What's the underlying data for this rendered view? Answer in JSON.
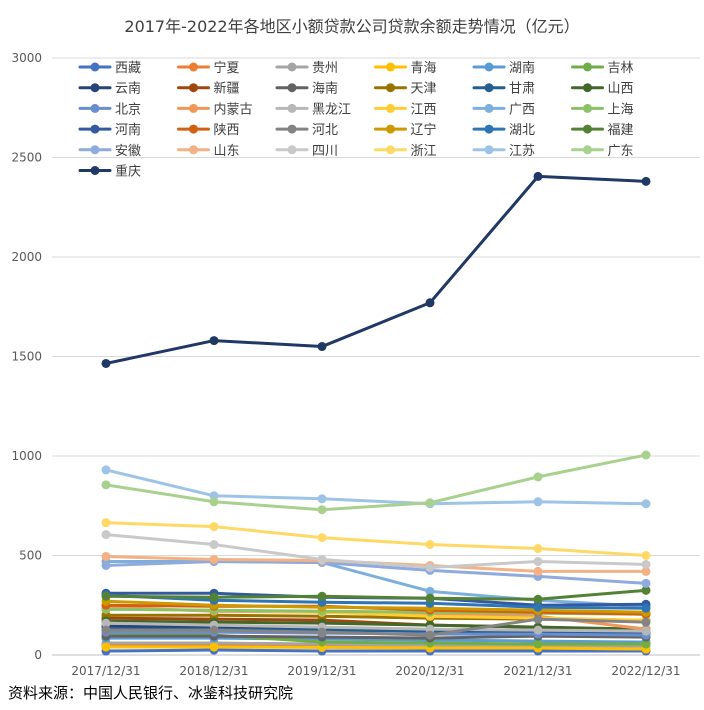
{
  "chart_data": {
    "type": "line",
    "title": "2017年-2022年各地区小额贷款公司贷款余额走势情况（亿元）",
    "xlabel": "",
    "ylabel": "",
    "categories": [
      "2017/12/31",
      "2018/12/31",
      "2019/12/31",
      "2020/12/31",
      "2021/12/31",
      "2022/12/31"
    ],
    "ylim": [
      0,
      3000
    ],
    "yticks": [
      0,
      500,
      1000,
      1500,
      2000,
      2500,
      3000
    ],
    "grid": "horizontal",
    "legend": "top-left, 6 columns",
    "series": [
      {
        "name": "西藏",
        "color": "#4472c4",
        "values": [
          20,
          25,
          20,
          20,
          20,
          20
        ]
      },
      {
        "name": "宁夏",
        "color": "#ed7d31",
        "values": [
          50,
          50,
          45,
          35,
          35,
          30
        ]
      },
      {
        "name": "贵州",
        "color": "#a5a5a5",
        "values": [
          60,
          60,
          55,
          50,
          45,
          40
        ]
      },
      {
        "name": "青海",
        "color": "#ffc000",
        "values": [
          40,
          40,
          38,
          35,
          35,
          30
        ]
      },
      {
        "name": "湖南",
        "color": "#5b9bd5",
        "values": [
          85,
          85,
          80,
          75,
          70,
          65
        ]
      },
      {
        "name": "吉林",
        "color": "#70ad47",
        "values": [
          110,
          100,
          65,
          60,
          55,
          55
        ]
      },
      {
        "name": "云南",
        "color": "#264478",
        "values": [
          145,
          140,
          130,
          120,
          115,
          110
        ]
      },
      {
        "name": "新疆",
        "color": "#9e480e",
        "values": [
          185,
          180,
          175,
          150,
          140,
          125
        ]
      },
      {
        "name": "海南",
        "color": "#636363",
        "values": [
          95,
          95,
          90,
          85,
          95,
          90
        ]
      },
      {
        "name": "天津",
        "color": "#997300",
        "values": [
          200,
          200,
          195,
          185,
          180,
          175
        ]
      },
      {
        "name": "甘肃",
        "color": "#255e91",
        "values": [
          130,
          130,
          125,
          120,
          120,
          115
        ]
      },
      {
        "name": "山西",
        "color": "#43682b",
        "values": [
          170,
          165,
          160,
          150,
          140,
          130
        ]
      },
      {
        "name": "北京",
        "color": "#698ed0",
        "values": [
          115,
          115,
          110,
          105,
          105,
          100
        ]
      },
      {
        "name": "内蒙古",
        "color": "#f1975a",
        "values": [
          240,
          220,
          215,
          205,
          195,
          130
        ]
      },
      {
        "name": "黑龙江",
        "color": "#b7b7b7",
        "values": [
          160,
          150,
          140,
          130,
          125,
          120
        ]
      },
      {
        "name": "江西",
        "color": "#ffcd33",
        "values": [
          230,
          225,
          215,
          195,
          185,
          175
        ]
      },
      {
        "name": "广西",
        "color": "#7cafdd",
        "values": [
          470,
          470,
          465,
          320,
          275,
          245
        ]
      },
      {
        "name": "上海",
        "color": "#8cc168",
        "values": [
          230,
          225,
          220,
          215,
          210,
          205
        ]
      },
      {
        "name": "河南",
        "color": "#335aa1",
        "values": [
          310,
          310,
          290,
          285,
          250,
          255
        ]
      },
      {
        "name": "陕西",
        "color": "#d26012",
        "values": [
          250,
          245,
          245,
          225,
          215,
          205
        ]
      },
      {
        "name": "河北",
        "color": "#848484",
        "values": [
          125,
          125,
          115,
          100,
          180,
          165
        ]
      },
      {
        "name": "辽宁",
        "color": "#cc9a00",
        "values": [
          270,
          250,
          240,
          235,
          225,
          215
        ]
      },
      {
        "name": "湖北",
        "color": "#2e75b6",
        "values": [
          300,
          275,
          265,
          260,
          240,
          235
        ]
      },
      {
        "name": "福建",
        "color": "#548235",
        "values": [
          295,
          290,
          295,
          285,
          280,
          325
        ]
      },
      {
        "name": "安徽",
        "color": "#8faadc",
        "values": [
          450,
          470,
          465,
          425,
          395,
          360
        ]
      },
      {
        "name": "山东",
        "color": "#f4b183",
        "values": [
          495,
          480,
          475,
          450,
          420,
          420
        ]
      },
      {
        "name": "四川",
        "color": "#c9c9c9",
        "values": [
          605,
          555,
          480,
          440,
          470,
          455
        ]
      },
      {
        "name": "浙江",
        "color": "#ffd966",
        "values": [
          665,
          645,
          590,
          555,
          535,
          500
        ]
      },
      {
        "name": "江苏",
        "color": "#9dc3e6",
        "values": [
          930,
          800,
          785,
          760,
          770,
          760
        ]
      },
      {
        "name": "广东",
        "color": "#a9d18e",
        "values": [
          855,
          770,
          730,
          765,
          895,
          1005
        ]
      },
      {
        "name": "重庆",
        "color": "#203864",
        "values": [
          1465,
          1580,
          1550,
          1770,
          2405,
          2380
        ]
      }
    ]
  },
  "source_note": "资料来源：中国人民银行、冰鉴科技研究院"
}
